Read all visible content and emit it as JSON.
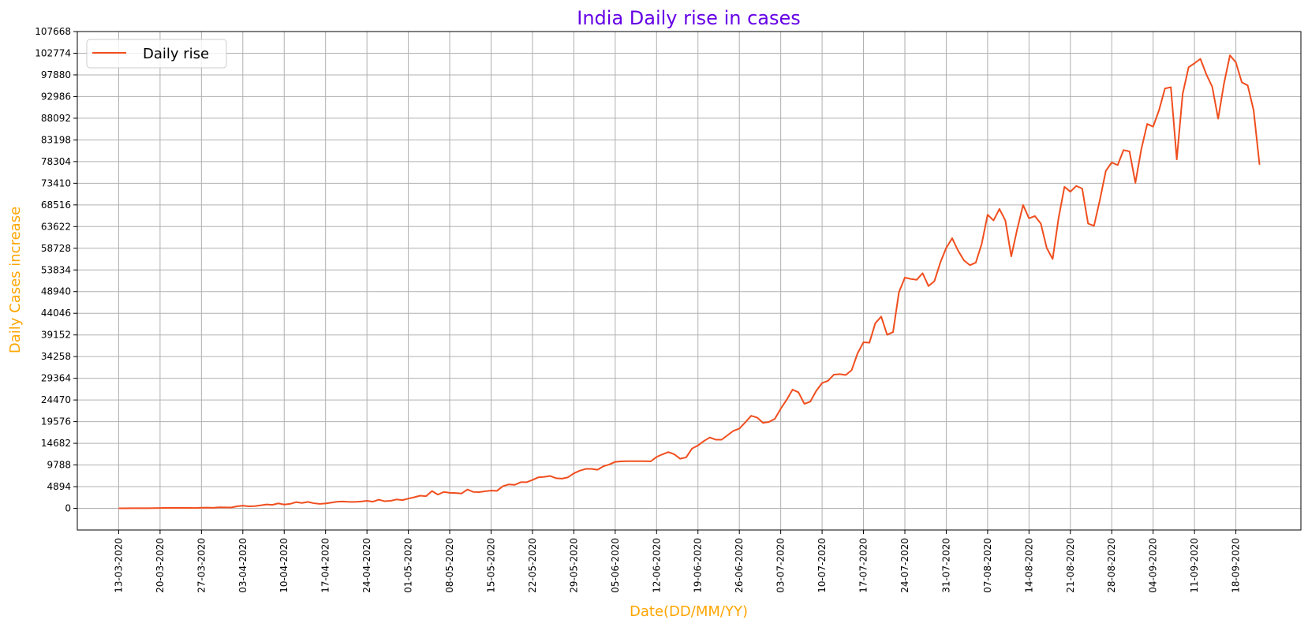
{
  "chart_data": {
    "type": "line",
    "title": "India Daily rise in cases",
    "xlabel": "Date(DD/MM/YY)",
    "ylabel": "Daily Cases increase",
    "grid": true,
    "legend_position": "top-left",
    "colors": {
      "title": "#6600e6",
      "axis_label": "#ffa500",
      "line": "#f04e1e",
      "grid": "#b0b0b0"
    },
    "y_ticks": [
      0,
      4894,
      9788,
      14682,
      19576,
      24470,
      29364,
      34258,
      39152,
      44046,
      48940,
      53834,
      58728,
      63622,
      68516,
      73410,
      78304,
      83198,
      88092,
      92986,
      97880,
      102774,
      107668
    ],
    "ylim": [
      -4894,
      107668
    ],
    "xlim": [
      "06-03-2020",
      "29-09-2020"
    ],
    "x_ticks": [
      "13-03-2020",
      "20-03-2020",
      "27-03-2020",
      "03-04-2020",
      "10-04-2020",
      "17-04-2020",
      "24-04-2020",
      "01-05-2020",
      "08-05-2020",
      "15-05-2020",
      "22-05-2020",
      "29-05-2020",
      "05-06-2020",
      "12-06-2020",
      "19-06-2020",
      "26-06-2020",
      "03-07-2020",
      "10-07-2020",
      "17-07-2020",
      "24-07-2020",
      "31-07-2020",
      "07-08-2020",
      "14-08-2020",
      "21-08-2020",
      "28-08-2020",
      "04-09-2020",
      "11-09-2020",
      "18-09-2020"
    ],
    "series": [
      {
        "name": "Daily rise",
        "x": [
          "13-03-2020",
          "14-03-2020",
          "15-03-2020",
          "16-03-2020",
          "17-03-2020",
          "18-03-2020",
          "19-03-2020",
          "20-03-2020",
          "21-03-2020",
          "22-03-2020",
          "23-03-2020",
          "24-03-2020",
          "25-03-2020",
          "26-03-2020",
          "27-03-2020",
          "28-03-2020",
          "29-03-2020",
          "30-03-2020",
          "31-03-2020",
          "01-04-2020",
          "02-04-2020",
          "03-04-2020",
          "04-04-2020",
          "05-04-2020",
          "06-04-2020",
          "07-04-2020",
          "08-04-2020",
          "09-04-2020",
          "10-04-2020",
          "11-04-2020",
          "12-04-2020",
          "13-04-2020",
          "14-04-2020",
          "15-04-2020",
          "16-04-2020",
          "17-04-2020",
          "18-04-2020",
          "19-04-2020",
          "20-04-2020",
          "21-04-2020",
          "22-04-2020",
          "23-04-2020",
          "24-04-2020",
          "25-04-2020",
          "26-04-2020",
          "27-04-2020",
          "28-04-2020",
          "29-04-2020",
          "30-04-2020",
          "01-05-2020",
          "02-05-2020",
          "03-05-2020",
          "04-05-2020",
          "05-05-2020",
          "06-05-2020",
          "07-05-2020",
          "08-05-2020",
          "09-05-2020",
          "10-05-2020",
          "11-05-2020",
          "12-05-2020",
          "13-05-2020",
          "14-05-2020",
          "15-05-2020",
          "16-05-2020",
          "17-05-2020",
          "18-05-2020",
          "19-05-2020",
          "20-05-2020",
          "21-05-2020",
          "22-05-2020",
          "23-05-2020",
          "24-05-2020",
          "25-05-2020",
          "26-05-2020",
          "27-05-2020",
          "28-05-2020",
          "29-05-2020",
          "30-05-2020",
          "31-05-2020",
          "01-06-2020",
          "02-06-2020",
          "03-06-2020",
          "04-06-2020",
          "05-06-2020",
          "06-06-2020",
          "07-06-2020",
          "08-06-2020",
          "09-06-2020",
          "10-06-2020",
          "11-06-2020",
          "12-06-2020",
          "13-06-2020",
          "14-06-2020",
          "15-06-2020",
          "16-06-2020",
          "17-06-2020",
          "18-06-2020",
          "19-06-2020",
          "20-06-2020",
          "21-06-2020",
          "22-06-2020",
          "23-06-2020",
          "24-06-2020",
          "25-06-2020",
          "26-06-2020",
          "27-06-2020",
          "28-06-2020",
          "29-06-2020",
          "30-06-2020",
          "01-07-2020",
          "02-07-2020",
          "03-07-2020",
          "04-07-2020",
          "05-07-2020",
          "06-07-2020",
          "07-07-2020",
          "08-07-2020",
          "09-07-2020",
          "10-07-2020",
          "11-07-2020",
          "12-07-2020",
          "13-07-2020",
          "14-07-2020",
          "15-07-2020",
          "16-07-2020",
          "17-07-2020",
          "18-07-2020",
          "19-07-2020",
          "20-07-2020",
          "21-07-2020",
          "22-07-2020",
          "23-07-2020",
          "24-07-2020",
          "25-07-2020",
          "26-07-2020",
          "27-07-2020",
          "28-07-2020",
          "29-07-2020",
          "30-07-2020",
          "31-07-2020",
          "01-08-2020",
          "02-08-2020",
          "03-08-2020",
          "04-08-2020",
          "05-08-2020",
          "06-08-2020",
          "07-08-2020",
          "08-08-2020",
          "09-08-2020",
          "10-08-2020",
          "11-08-2020",
          "12-08-2020",
          "13-08-2020",
          "14-08-2020",
          "15-08-2020",
          "16-08-2020",
          "17-08-2020",
          "18-08-2020",
          "19-08-2020",
          "20-08-2020",
          "21-08-2020",
          "22-08-2020",
          "23-08-2020",
          "24-08-2020",
          "25-08-2020",
          "26-08-2020",
          "27-08-2020",
          "28-08-2020",
          "29-08-2020",
          "30-08-2020",
          "31-08-2020",
          "01-09-2020",
          "02-09-2020",
          "03-09-2020",
          "04-09-2020",
          "05-09-2020",
          "06-09-2020",
          "07-09-2020",
          "08-09-2020",
          "09-09-2020",
          "10-09-2020",
          "11-09-2020",
          "12-09-2020",
          "13-09-2020",
          "14-09-2020",
          "15-09-2020",
          "16-09-2020",
          "17-09-2020",
          "18-09-2020",
          "19-09-2020",
          "20-09-2020",
          "21-09-2020",
          "22-09-2020"
        ],
        "y": [
          10,
          15,
          20,
          20,
          25,
          30,
          50,
          80,
          110,
          90,
          100,
          120,
          90,
          80,
          130,
          160,
          120,
          230,
          200,
          180,
          450,
          600,
          450,
          500,
          680,
          880,
          780,
          1120,
          850,
          1000,
          1400,
          1200,
          1450,
          1150,
          1000,
          1100,
          1300,
          1500,
          1550,
          1450,
          1450,
          1550,
          1700,
          1500,
          1950,
          1600,
          1700,
          2000,
          1850,
          2200,
          2500,
          2850,
          2750,
          3900,
          3100,
          3700,
          3500,
          3450,
          3350,
          4250,
          3700,
          3650,
          3850,
          4000,
          3950,
          5000,
          5400,
          5300,
          5900,
          5900,
          6400,
          7000,
          7100,
          7300,
          6800,
          6700,
          7000,
          7900,
          8500,
          8900,
          8900,
          8700,
          9500,
          9900,
          10500,
          10600,
          10650,
          10650,
          10650,
          10650,
          10600,
          11600,
          12200,
          12700,
          12200,
          11200,
          11500,
          13500,
          14200,
          15200,
          16000,
          15500,
          15500,
          16500,
          17500,
          18000,
          19400,
          20900,
          20500,
          19300,
          19500,
          20200,
          22500,
          24500,
          26800,
          26200,
          23600,
          24100,
          26500,
          28300,
          28800,
          30200,
          30300,
          30100,
          31200,
          35000,
          37500,
          37400,
          41800,
          43300,
          39200,
          39800,
          48800,
          52100,
          51800,
          51600,
          53100,
          50200,
          51300,
          55500,
          58800,
          61000,
          58200,
          56000,
          54900,
          55500,
          59700,
          66300,
          65000,
          67600,
          65000,
          56900,
          63000,
          68500,
          65500,
          66000,
          64300,
          58800,
          56300,
          65500,
          72600,
          71500,
          72800,
          72200,
          64300,
          63800,
          69700,
          76200,
          78100,
          77500,
          80900,
          80600,
          73500,
          81100,
          86800,
          86200,
          89900,
          94800,
          95100,
          78800,
          93600,
          99600,
          100500,
          101500,
          98000,
          95200,
          88000,
          96000,
          102300,
          100700,
          96200,
          95500,
          89900,
          77600
        ]
      }
    ]
  }
}
